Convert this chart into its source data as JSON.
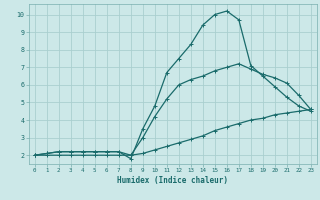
{
  "title": "",
  "xlabel": "Humidex (Indice chaleur)",
  "ylabel": "",
  "bg_color": "#cce8e8",
  "line_color": "#1a6b6b",
  "grid_color": "#aacfcf",
  "xlim": [
    -0.5,
    23.5
  ],
  "ylim": [
    1.5,
    10.6
  ],
  "xticks": [
    0,
    1,
    2,
    3,
    4,
    5,
    6,
    7,
    8,
    9,
    10,
    11,
    12,
    13,
    14,
    15,
    16,
    17,
    18,
    19,
    20,
    21,
    22,
    23
  ],
  "yticks": [
    2,
    3,
    4,
    5,
    6,
    7,
    8,
    9,
    10
  ],
  "curve_bottom_x": [
    0,
    1,
    2,
    3,
    4,
    5,
    6,
    7,
    8,
    9,
    10,
    11,
    12,
    13,
    14,
    15,
    16,
    17,
    18,
    19,
    20,
    21,
    22,
    23
  ],
  "curve_bottom_y": [
    2.0,
    2.0,
    2.0,
    2.0,
    2.0,
    2.0,
    2.0,
    2.0,
    2.0,
    2.1,
    2.3,
    2.5,
    2.7,
    2.9,
    3.1,
    3.4,
    3.6,
    3.8,
    4.0,
    4.1,
    4.3,
    4.4,
    4.5,
    4.6
  ],
  "curve_mid_x": [
    0,
    1,
    2,
    3,
    4,
    5,
    6,
    7,
    8,
    9,
    10,
    11,
    12,
    13,
    14,
    15,
    16,
    17,
    18,
    19,
    20,
    21,
    22,
    23
  ],
  "curve_mid_y": [
    2.0,
    2.1,
    2.2,
    2.2,
    2.2,
    2.2,
    2.2,
    2.2,
    2.0,
    3.0,
    4.2,
    5.2,
    6.0,
    6.3,
    6.5,
    6.8,
    7.0,
    7.2,
    6.9,
    6.6,
    6.4,
    6.1,
    5.4,
    4.6
  ],
  "curve_top_x": [
    0,
    1,
    2,
    3,
    4,
    5,
    6,
    7,
    8,
    9,
    10,
    11,
    12,
    13,
    14,
    15,
    16,
    17,
    18,
    19,
    20,
    21,
    22,
    23
  ],
  "curve_top_y": [
    2.0,
    2.1,
    2.2,
    2.2,
    2.2,
    2.2,
    2.2,
    2.2,
    1.8,
    3.5,
    4.8,
    6.7,
    7.5,
    8.3,
    9.4,
    10.0,
    10.2,
    9.7,
    7.1,
    6.5,
    5.9,
    5.3,
    4.8,
    4.5
  ]
}
